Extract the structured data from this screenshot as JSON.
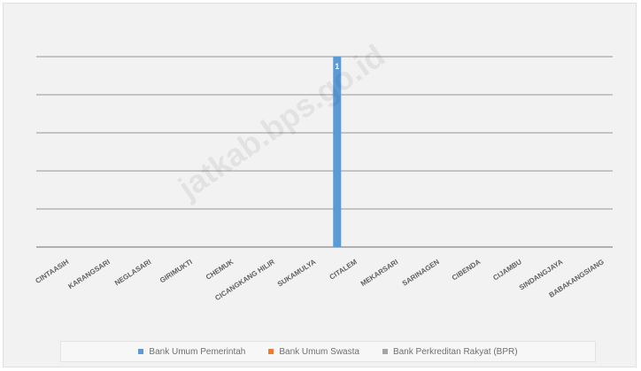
{
  "chart_data": {
    "type": "bar",
    "title": "",
    "xlabel": "",
    "ylabel": "",
    "ylim": [
      0,
      1
    ],
    "grid": true,
    "legend_position": "bottom",
    "categories": [
      "CINTAASIH",
      "KARANGSARI",
      "NEGLASARI",
      "GIRIMUKTI",
      "CHEMUK",
      "CICANGKANG HILIR",
      "SUKAMULYA",
      "CITALEM",
      "MEKARSARI",
      "SARINAGEN",
      "CIBENDA",
      "CIJAMBU",
      "SINDANGJAYA",
      "BABAKANGSIANG"
    ],
    "series": [
      {
        "name": "Bank Umum Pemerintah",
        "color": "#5b9bd5",
        "values": [
          0,
          0,
          0,
          0,
          0,
          0,
          0,
          1,
          0,
          0,
          0,
          0,
          0,
          0
        ],
        "labels": [
          "",
          "",
          "",
          "",
          "",
          "",
          "",
          "1",
          "",
          "",
          "",
          "",
          "",
          ""
        ]
      },
      {
        "name": "Bank Umum Swasta",
        "color": "#ed7d31",
        "values": [
          0,
          0,
          0,
          0,
          0,
          0,
          0,
          0,
          0,
          0,
          0,
          0,
          0,
          0
        ]
      },
      {
        "name": "Bank Perkreditan Rakyat (BPR)",
        "color": "#a5a5a5",
        "values": [
          0,
          0,
          0,
          0,
          0,
          0,
          0,
          0,
          0,
          0,
          0,
          0,
          0,
          0
        ]
      }
    ]
  },
  "watermark": "jatkab.bps.go.id"
}
